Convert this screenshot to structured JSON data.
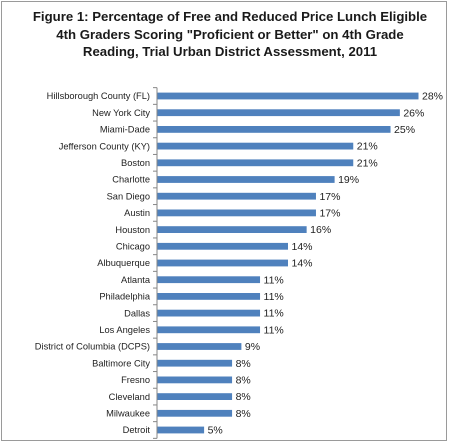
{
  "chart_data": {
    "type": "bar",
    "orientation": "horizontal",
    "title_lines": [
      "Figure 1: Percentage of Free and Reduced Price Lunch Eligible",
      "4th Graders Scoring \"Proficient or Better\" on 4th Grade",
      "Reading, Trial Urban District Assessment, 2011"
    ],
    "categories": [
      "Hillsborough County (FL)",
      "New York City",
      "Miami-Dade",
      "Jefferson County (KY)",
      "Boston",
      "Charlotte",
      "San Diego",
      "Austin",
      "Houston",
      "Chicago",
      "Albuquerque",
      "Atlanta",
      "Philadelphia",
      "Dallas",
      "Los Angeles",
      "District of Columbia (DCPS)",
      "Baltimore City",
      "Fresno",
      "Cleveland",
      "Milwaukee",
      "Detroit"
    ],
    "values": [
      28,
      26,
      25,
      21,
      21,
      19,
      17,
      17,
      16,
      14,
      14,
      11,
      11,
      11,
      11,
      9,
      8,
      8,
      8,
      8,
      5
    ],
    "value_labels": [
      "28%",
      "26%",
      "25%",
      "21%",
      "21%",
      "19%",
      "17%",
      "17%",
      "16%",
      "14%",
      "14%",
      "11%",
      "11%",
      "11%",
      "11%",
      "9%",
      "8%",
      "8%",
      "8%",
      "8%",
      "5%"
    ],
    "xlim": [
      0,
      28
    ],
    "grid": false,
    "legend": "none",
    "colors": {
      "bar": "#4f81bd",
      "axis": "#868686"
    }
  }
}
